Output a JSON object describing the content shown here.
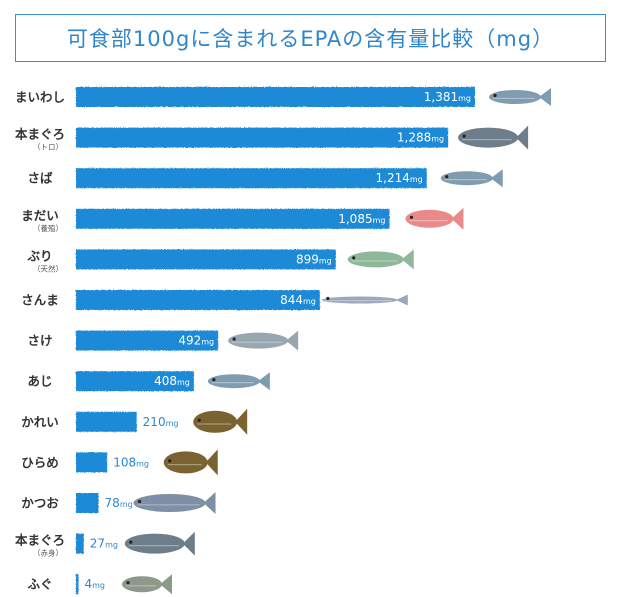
{
  "title": "可食部100gに含まれるEPAの含有量比較（mg）",
  "unit": "mg",
  "colors": {
    "bar": "#1f8ad6",
    "text": "#2f86cc",
    "fish_blue": "#7f9cb0",
    "fish_red": "#e98a8a",
    "fish_brown": "#7a6330"
  },
  "chart_data": {
    "type": "bar",
    "orientation": "horizontal",
    "title": "可食部100gに含まれるEPAの含有量比較（mg）",
    "categories": [
      {
        "label": "まいわし",
        "sub": ""
      },
      {
        "label": "本まぐろ",
        "sub": "（トロ）"
      },
      {
        "label": "さば",
        "sub": ""
      },
      {
        "label": "まだい",
        "sub": "（養殖）"
      },
      {
        "label": "ぶり",
        "sub": "（天然）"
      },
      {
        "label": "さんま",
        "sub": ""
      },
      {
        "label": "さけ",
        "sub": ""
      },
      {
        "label": "あじ",
        "sub": ""
      },
      {
        "label": "かれい",
        "sub": ""
      },
      {
        "label": "ひらめ",
        "sub": ""
      },
      {
        "label": "かつお",
        "sub": ""
      },
      {
        "label": "本まぐろ",
        "sub": "（赤身）"
      },
      {
        "label": "ふぐ",
        "sub": ""
      }
    ],
    "values": [
      1381,
      1288,
      1214,
      1085,
      899,
      844,
      492,
      408,
      210,
      108,
      78,
      27,
      4
    ],
    "value_labels": [
      "1,381",
      "1,288",
      "1,214",
      "1,085",
      "899",
      "844",
      "492",
      "408",
      "210",
      "108",
      "78",
      "27",
      "4"
    ],
    "icons": [
      "sardine-icon",
      "bluefin-tuna-icon",
      "mackerel-icon",
      "sea-bream-icon",
      "yellowtail-icon",
      "saury-icon",
      "salmon-icon",
      "horse-mackerel-icon",
      "flounder-icon",
      "flatfish-icon",
      "skipjack-icon",
      "tuna-icon",
      "pufferfish-icon"
    ],
    "xlim": [
      0,
      1400
    ],
    "grid": false,
    "legend": "none"
  }
}
